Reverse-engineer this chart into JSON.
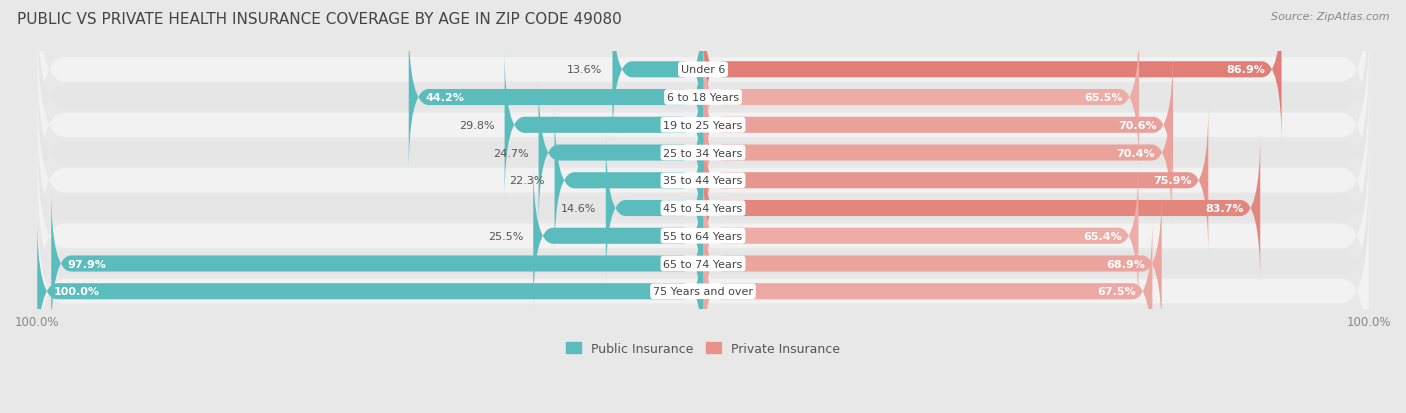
{
  "title": "PUBLIC VS PRIVATE HEALTH INSURANCE COVERAGE BY AGE IN ZIP CODE 49080",
  "source": "Source: ZipAtlas.com",
  "categories": [
    "Under 6",
    "6 to 18 Years",
    "19 to 25 Years",
    "25 to 34 Years",
    "35 to 44 Years",
    "45 to 54 Years",
    "55 to 64 Years",
    "65 to 74 Years",
    "75 Years and over"
  ],
  "public_values": [
    13.6,
    44.2,
    29.8,
    24.7,
    22.3,
    14.6,
    25.5,
    97.9,
    100.0
  ],
  "private_values": [
    86.9,
    65.5,
    70.6,
    70.4,
    75.9,
    83.7,
    65.4,
    68.9,
    67.5
  ],
  "public_color": "#5bbcbd",
  "private_color": "#e8928a",
  "private_color_strong": "#d9635a",
  "private_color_weak": "#f0b8b2",
  "public_label": "Public Insurance",
  "private_label": "Private Insurance",
  "row_bg_color_light": "#f2f2f2",
  "row_bg_color_dark": "#e6e6e6",
  "label_bg_color": "#ffffff",
  "title_fontsize": 11,
  "source_fontsize": 8,
  "axis_label_fontsize": 8.5,
  "bar_label_fontsize": 8,
  "category_label_fontsize": 8,
  "legend_fontsize": 9,
  "x_min": -100,
  "x_max": 100
}
